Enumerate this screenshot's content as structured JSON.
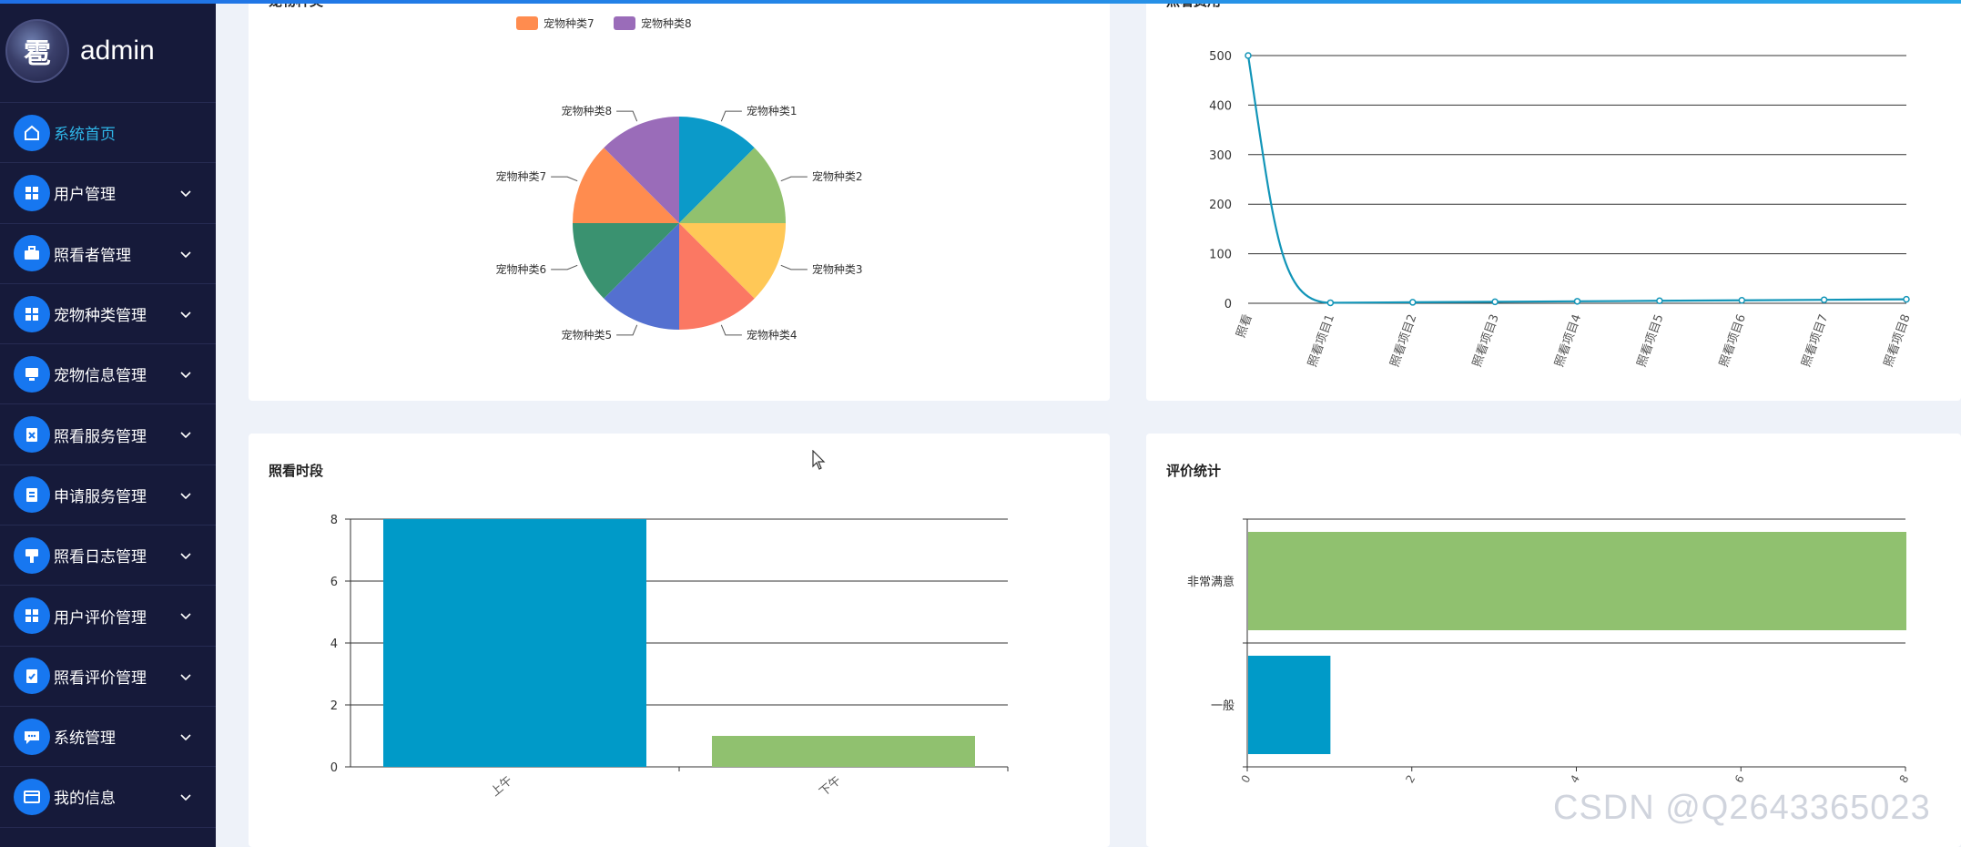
{
  "user": {
    "name": "admin",
    "avatar_glyph": "雹"
  },
  "menu": [
    {
      "label": "系统首页",
      "icon": "home-icon",
      "active": true,
      "expandable": false
    },
    {
      "label": "用户管理",
      "icon": "grid-icon",
      "active": false,
      "expandable": true
    },
    {
      "label": "照看者管理",
      "icon": "briefcase-icon",
      "active": false,
      "expandable": true
    },
    {
      "label": "宠物种类管理",
      "icon": "grid-icon",
      "active": false,
      "expandable": true
    },
    {
      "label": "宠物信息管理",
      "icon": "monitor-icon",
      "active": false,
      "expandable": true
    },
    {
      "label": "照看服务管理",
      "icon": "clipboard-x-icon",
      "active": false,
      "expandable": true
    },
    {
      "label": "申请服务管理",
      "icon": "clipboard-icon",
      "active": false,
      "expandable": true
    },
    {
      "label": "照看日志管理",
      "icon": "brush-icon",
      "active": false,
      "expandable": true
    },
    {
      "label": "用户评价管理",
      "icon": "grid-icon",
      "active": false,
      "expandable": true
    },
    {
      "label": "照看评价管理",
      "icon": "clipboard-check-icon",
      "active": false,
      "expandable": true
    },
    {
      "label": "系统管理",
      "icon": "chat-icon",
      "active": false,
      "expandable": true
    },
    {
      "label": "我的信息",
      "icon": "card-icon",
      "active": false,
      "expandable": true
    }
  ],
  "cards": {
    "pie_title": "宠物种类",
    "fee_title": "照看费用",
    "period_title": "照看时段",
    "rating_title": "评价统计"
  },
  "chart_data": [
    {
      "type": "pie",
      "title": "宠物种类",
      "legend_visible": [
        "宠物种类7",
        "宠物种类8"
      ],
      "categories": [
        "宠物种类1",
        "宠物种类2",
        "宠物种类3",
        "宠物种类4",
        "宠物种类5",
        "宠物种类6",
        "宠物种类7",
        "宠物种类8"
      ],
      "values": [
        1,
        1,
        1,
        1,
        1,
        1,
        1,
        1
      ],
      "colors": [
        "#0b9ac9",
        "#91c16e",
        "#ffc857",
        "#fb7863",
        "#5470d0",
        "#3a9270",
        "#ff8c4f",
        "#9a6cb9"
      ]
    },
    {
      "type": "line",
      "title": "照看费用",
      "categories": [
        "照看",
        "照看项目1",
        "照看项目2",
        "照看项目3",
        "照看项目4",
        "照看项目5",
        "照看项目6",
        "照看项目7",
        "照看项目8"
      ],
      "values": [
        500,
        1,
        2,
        3,
        4,
        5,
        6,
        7,
        8
      ],
      "ylim": [
        0,
        500
      ],
      "yticks": [
        0,
        100,
        200,
        300,
        400,
        500
      ],
      "color": "#1295b8"
    },
    {
      "type": "bar",
      "title": "照看时段",
      "categories": [
        "上午",
        "下午"
      ],
      "values": [
        8,
        1
      ],
      "ylim": [
        0,
        8
      ],
      "yticks": [
        0,
        2,
        4,
        6,
        8
      ],
      "colors": [
        "#009ac8",
        "#90c16f"
      ]
    },
    {
      "type": "bar",
      "orientation": "horizontal",
      "title": "评价统计",
      "categories": [
        "一般",
        "非常满意"
      ],
      "values": [
        1,
        8
      ],
      "xlim": [
        0,
        8
      ],
      "xticks": [
        0,
        2,
        4,
        6,
        8
      ],
      "colors": [
        "#009ac8",
        "#90c16f"
      ]
    }
  ],
  "watermark": "CSDN @Q2643365023"
}
